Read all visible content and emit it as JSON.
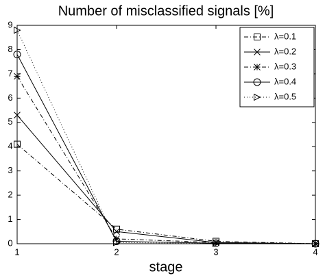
{
  "chart_data": {
    "type": "line",
    "title": "Number of misclassified signals [%]",
    "xlabel": "stage",
    "x": [
      1,
      2,
      3,
      4
    ],
    "xlim": [
      1,
      4
    ],
    "xticks": [
      1,
      2,
      3,
      4
    ],
    "ylim": [
      0,
      9
    ],
    "yticks": [
      0,
      1,
      2,
      3,
      4,
      5,
      6,
      7,
      8,
      9
    ],
    "legend": "upper right",
    "series": [
      {
        "name": "λ=0.1",
        "color": "#000000",
        "marker": "square",
        "dash": "dashdot",
        "values": [
          4.1,
          0.6,
          0.1,
          0
        ]
      },
      {
        "name": "λ=0.2",
        "color": "#000000",
        "marker": "x",
        "dash": "solid",
        "values": [
          5.3,
          0.5,
          0.05,
          0
        ]
      },
      {
        "name": "λ=0.3",
        "color": "#000000",
        "marker": "star",
        "dash": "dashdot",
        "values": [
          6.9,
          0.2,
          0.05,
          0
        ]
      },
      {
        "name": "λ=0.4",
        "color": "#000000",
        "marker": "circle",
        "dash": "solid",
        "values": [
          7.8,
          0.1,
          0.02,
          0
        ]
      },
      {
        "name": "λ=0.5",
        "color": "#000000",
        "marker": "triangle-right",
        "dash": "dotted",
        "values": [
          8.8,
          0.05,
          0.01,
          0
        ]
      }
    ]
  }
}
